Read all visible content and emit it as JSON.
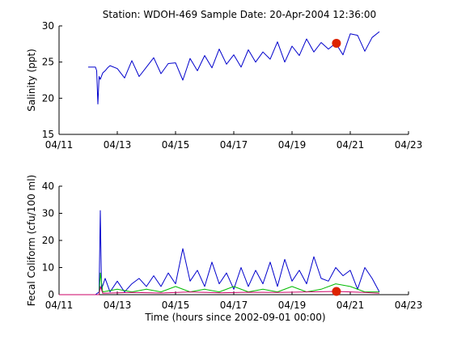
{
  "figure_title": "Station: WDOH-469  Sample Date: 20-Apr-2004 12:36:00",
  "colors": {
    "background": "#ffffff",
    "salinity_line": "#0000cc",
    "fecal_blue": "#0000cc",
    "fecal_green": "#00bb00",
    "fecal_magenta": "#cc0066",
    "marker": "#dd2200"
  },
  "chart_data": [
    {
      "type": "line",
      "title": "Station: WDOH-469  Sample Date: 20-Apr-2004 12:36:00",
      "xlabel": "",
      "ylabel": "Salinity (ppt)",
      "xlim": [
        "2004-04-11",
        "2004-04-23"
      ],
      "ylim": [
        15,
        30
      ],
      "xticks": [
        "04/11",
        "04/13",
        "04/15",
        "04/17",
        "04/19",
        "04/21",
        "04/23"
      ],
      "yticks": [
        "15",
        "20",
        "25",
        "30"
      ],
      "grid": false,
      "series": [
        {
          "x": [
            "2004-04-12 00:00",
            "2004-04-12 06:00",
            "2004-04-12 07:00",
            "2004-04-12 08:00",
            "2004-04-12 09:00",
            "2004-04-12 10:00",
            "2004-04-12 12:00",
            "2004-04-12 14:00",
            "2004-04-12 16:00",
            "2004-04-12 18:00",
            "2004-04-13 00:00",
            "2004-04-13 06:00",
            "2004-04-13 12:00",
            "2004-04-13 18:00",
            "2004-04-14 00:00",
            "2004-04-14 06:00",
            "2004-04-14 12:00",
            "2004-04-14 18:00",
            "2004-04-15 00:00",
            "2004-04-15 06:00",
            "2004-04-15 12:00",
            "2004-04-15 18:00",
            "2004-04-16 00:00",
            "2004-04-16 06:00",
            "2004-04-16 12:00",
            "2004-04-16 18:00",
            "2004-04-17 00:00",
            "2004-04-17 06:00",
            "2004-04-17 12:00",
            "2004-04-17 18:00",
            "2004-04-18 00:00",
            "2004-04-18 06:00",
            "2004-04-18 12:00",
            "2004-04-18 18:00",
            "2004-04-19 00:00",
            "2004-04-19 06:00",
            "2004-04-19 12:00",
            "2004-04-19 18:00",
            "2004-04-20 00:00",
            "2004-04-20 06:00",
            "2004-04-20 12:00",
            "2004-04-20 18:00",
            "2004-04-21 00:00",
            "2004-04-21 06:00",
            "2004-04-21 12:00",
            "2004-04-21 18:00",
            "2004-04-22 00:00"
          ],
          "values": [
            24.3,
            24.3,
            23.8,
            19.2,
            23.0,
            22.6,
            23.5,
            23.8,
            24.2,
            24.5,
            24.1,
            22.8,
            25.2,
            23.0,
            24.3,
            25.6,
            23.4,
            24.8,
            24.9,
            22.5,
            25.5,
            23.8,
            25.9,
            24.2,
            26.8,
            24.7,
            26.0,
            24.3,
            26.7,
            25.0,
            26.4,
            25.4,
            27.8,
            25.0,
            27.2,
            25.9,
            28.2,
            26.4,
            27.7,
            26.8,
            27.6,
            26.0,
            28.9,
            28.7,
            26.5,
            28.4,
            29.2
          ]
        }
      ],
      "markers": [
        {
          "x": "2004-04-20 12:36",
          "y": 27.6
        }
      ]
    },
    {
      "type": "line",
      "title": "",
      "xlabel": "Time (hours since 2002-09-01 00:00)",
      "ylabel": "Fecal Coliform (cfu/100 ml)",
      "xlim": [
        "2004-04-11",
        "2004-04-23"
      ],
      "ylim": [
        0,
        40
      ],
      "xticks": [
        "04/11",
        "04/13",
        "04/15",
        "04/17",
        "04/19",
        "04/21",
        "04/23"
      ],
      "yticks": [
        "0",
        "10",
        "20",
        "30",
        "40"
      ],
      "grid": false,
      "series": [
        {
          "x": [
            "2004-04-11 00:00",
            "2004-04-12 06:00",
            "2004-04-12 09:00",
            "2004-04-12 10:00",
            "2004-04-12 11:00",
            "2004-04-12 14:00",
            "2004-04-12 18:00",
            "2004-04-13 00:00",
            "2004-04-13 06:00",
            "2004-04-13 12:00",
            "2004-04-13 18:00",
            "2004-04-14 00:00",
            "2004-04-14 06:00",
            "2004-04-14 12:00",
            "2004-04-14 18:00",
            "2004-04-15 00:00",
            "2004-04-15 06:00",
            "2004-04-15 12:00",
            "2004-04-15 18:00",
            "2004-04-16 00:00",
            "2004-04-16 06:00",
            "2004-04-16 12:00",
            "2004-04-16 18:00",
            "2004-04-17 00:00",
            "2004-04-17 06:00",
            "2004-04-17 12:00",
            "2004-04-17 18:00",
            "2004-04-18 00:00",
            "2004-04-18 06:00",
            "2004-04-18 12:00",
            "2004-04-18 18:00",
            "2004-04-19 00:00",
            "2004-04-19 06:00",
            "2004-04-19 12:00",
            "2004-04-19 18:00",
            "2004-04-20 00:00",
            "2004-04-20 06:00",
            "2004-04-20 12:00",
            "2004-04-20 18:00",
            "2004-04-21 00:00",
            "2004-04-21 06:00",
            "2004-04-21 12:00",
            "2004-04-21 18:00",
            "2004-04-22 00:00"
          ],
          "values": [
            0,
            0,
            1,
            31,
            2,
            6,
            1,
            5,
            1,
            4,
            6,
            3,
            7,
            3,
            8,
            4,
            17,
            5,
            9,
            3,
            12,
            4,
            8,
            2,
            10,
            3,
            9,
            4,
            12,
            3,
            13,
            5,
            9,
            4,
            14,
            6,
            5,
            10,
            7,
            9,
            2,
            10,
            6,
            1
          ]
        },
        {
          "x": [
            "2004-04-11 00:00",
            "2004-04-12 09:00",
            "2004-04-12 10:00",
            "2004-04-12 12:00",
            "2004-04-13 00:00",
            "2004-04-13 12:00",
            "2004-04-14 00:00",
            "2004-04-14 12:00",
            "2004-04-15 00:00",
            "2004-04-15 12:00",
            "2004-04-16 00:00",
            "2004-04-16 12:00",
            "2004-04-17 00:00",
            "2004-04-17 12:00",
            "2004-04-18 00:00",
            "2004-04-18 12:00",
            "2004-04-19 00:00",
            "2004-04-19 12:00",
            "2004-04-20 00:00",
            "2004-04-20 12:00",
            "2004-04-21 00:00",
            "2004-04-21 12:00",
            "2004-04-22 00:00"
          ],
          "values": [
            0,
            0,
            8,
            1,
            2,
            1,
            2,
            1,
            3,
            1,
            2,
            1,
            3,
            1,
            2,
            1,
            3,
            1,
            2,
            4,
            3,
            1,
            1
          ]
        },
        {
          "x": [
            "2004-04-11 00:00",
            "2004-04-12 09:00",
            "2004-04-12 10:00",
            "2004-04-12 12:00",
            "2004-04-13 12:00",
            "2004-04-14 12:00",
            "2004-04-15 12:00",
            "2004-04-16 12:00",
            "2004-04-17 12:00",
            "2004-04-18 12:00",
            "2004-04-19 12:00",
            "2004-04-20 12:00",
            "2004-04-21 12:00",
            "2004-04-22 00:00"
          ],
          "values": [
            0,
            0,
            3,
            0.5,
            0.8,
            0.6,
            1,
            0.7,
            0.9,
            0.8,
            1,
            1.2,
            0.8,
            0.5
          ]
        }
      ],
      "markers": [
        {
          "x": "2004-04-20 12:36",
          "y": 1.2
        }
      ]
    }
  ]
}
